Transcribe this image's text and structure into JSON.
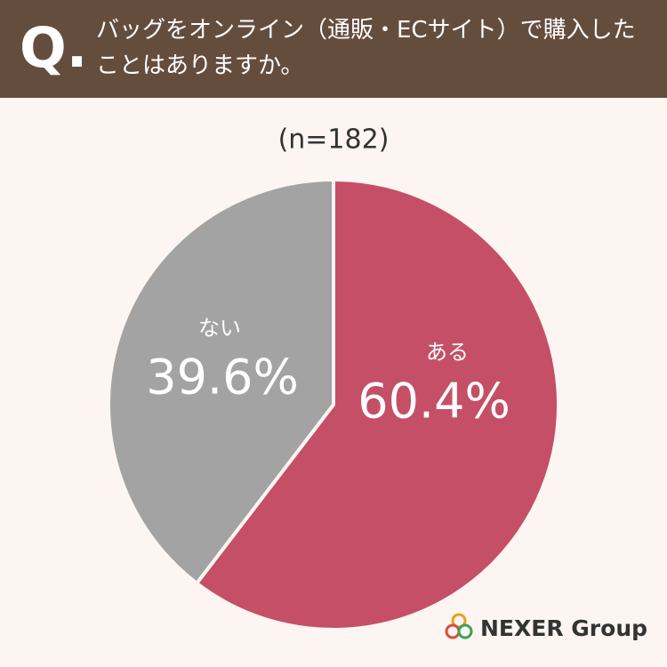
{
  "chart_data": {
    "type": "pie",
    "title_prefix": "Q.",
    "title": "バッグをオンライン（通販・ECサイト）で購入したことはありますか。",
    "subtitle": "(n=182)",
    "categories": [
      "ある",
      "ない"
    ],
    "values": [
      60.4,
      39.6
    ],
    "value_labels": [
      "60.4%",
      "39.6%"
    ],
    "colors": [
      "#c44f67",
      "#a3a3a3"
    ],
    "source": "NEXER Group"
  }
}
